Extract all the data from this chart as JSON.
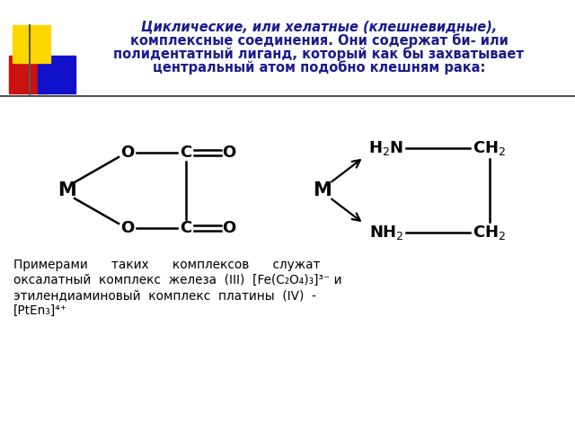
{
  "bg_color": "#ffffff",
  "title_color": "#1a1a8c",
  "black": "#000000",
  "sq_yellow": "#FFD700",
  "sq_red": "#CC1111",
  "sq_blue": "#1111CC",
  "line_gray": "#555555",
  "title_lines": [
    "Циклические, или хелатные (клешневидные),",
    "комплексные соединения. Они содержат би- или",
    "полидентатный лиганд, который как бы захватывает",
    "центральный атом подобно клешням рака:"
  ],
  "bottom_lines": [
    "Примерами      таких      комплексов      служат",
    "оксалатный  комплекс  железа  (III)  [Fe(C₂O₄)₃]³⁻ и",
    "этилендиаминовый  комплекс  платины  (IV)  -",
    "[PtEn₃]⁴⁺"
  ]
}
